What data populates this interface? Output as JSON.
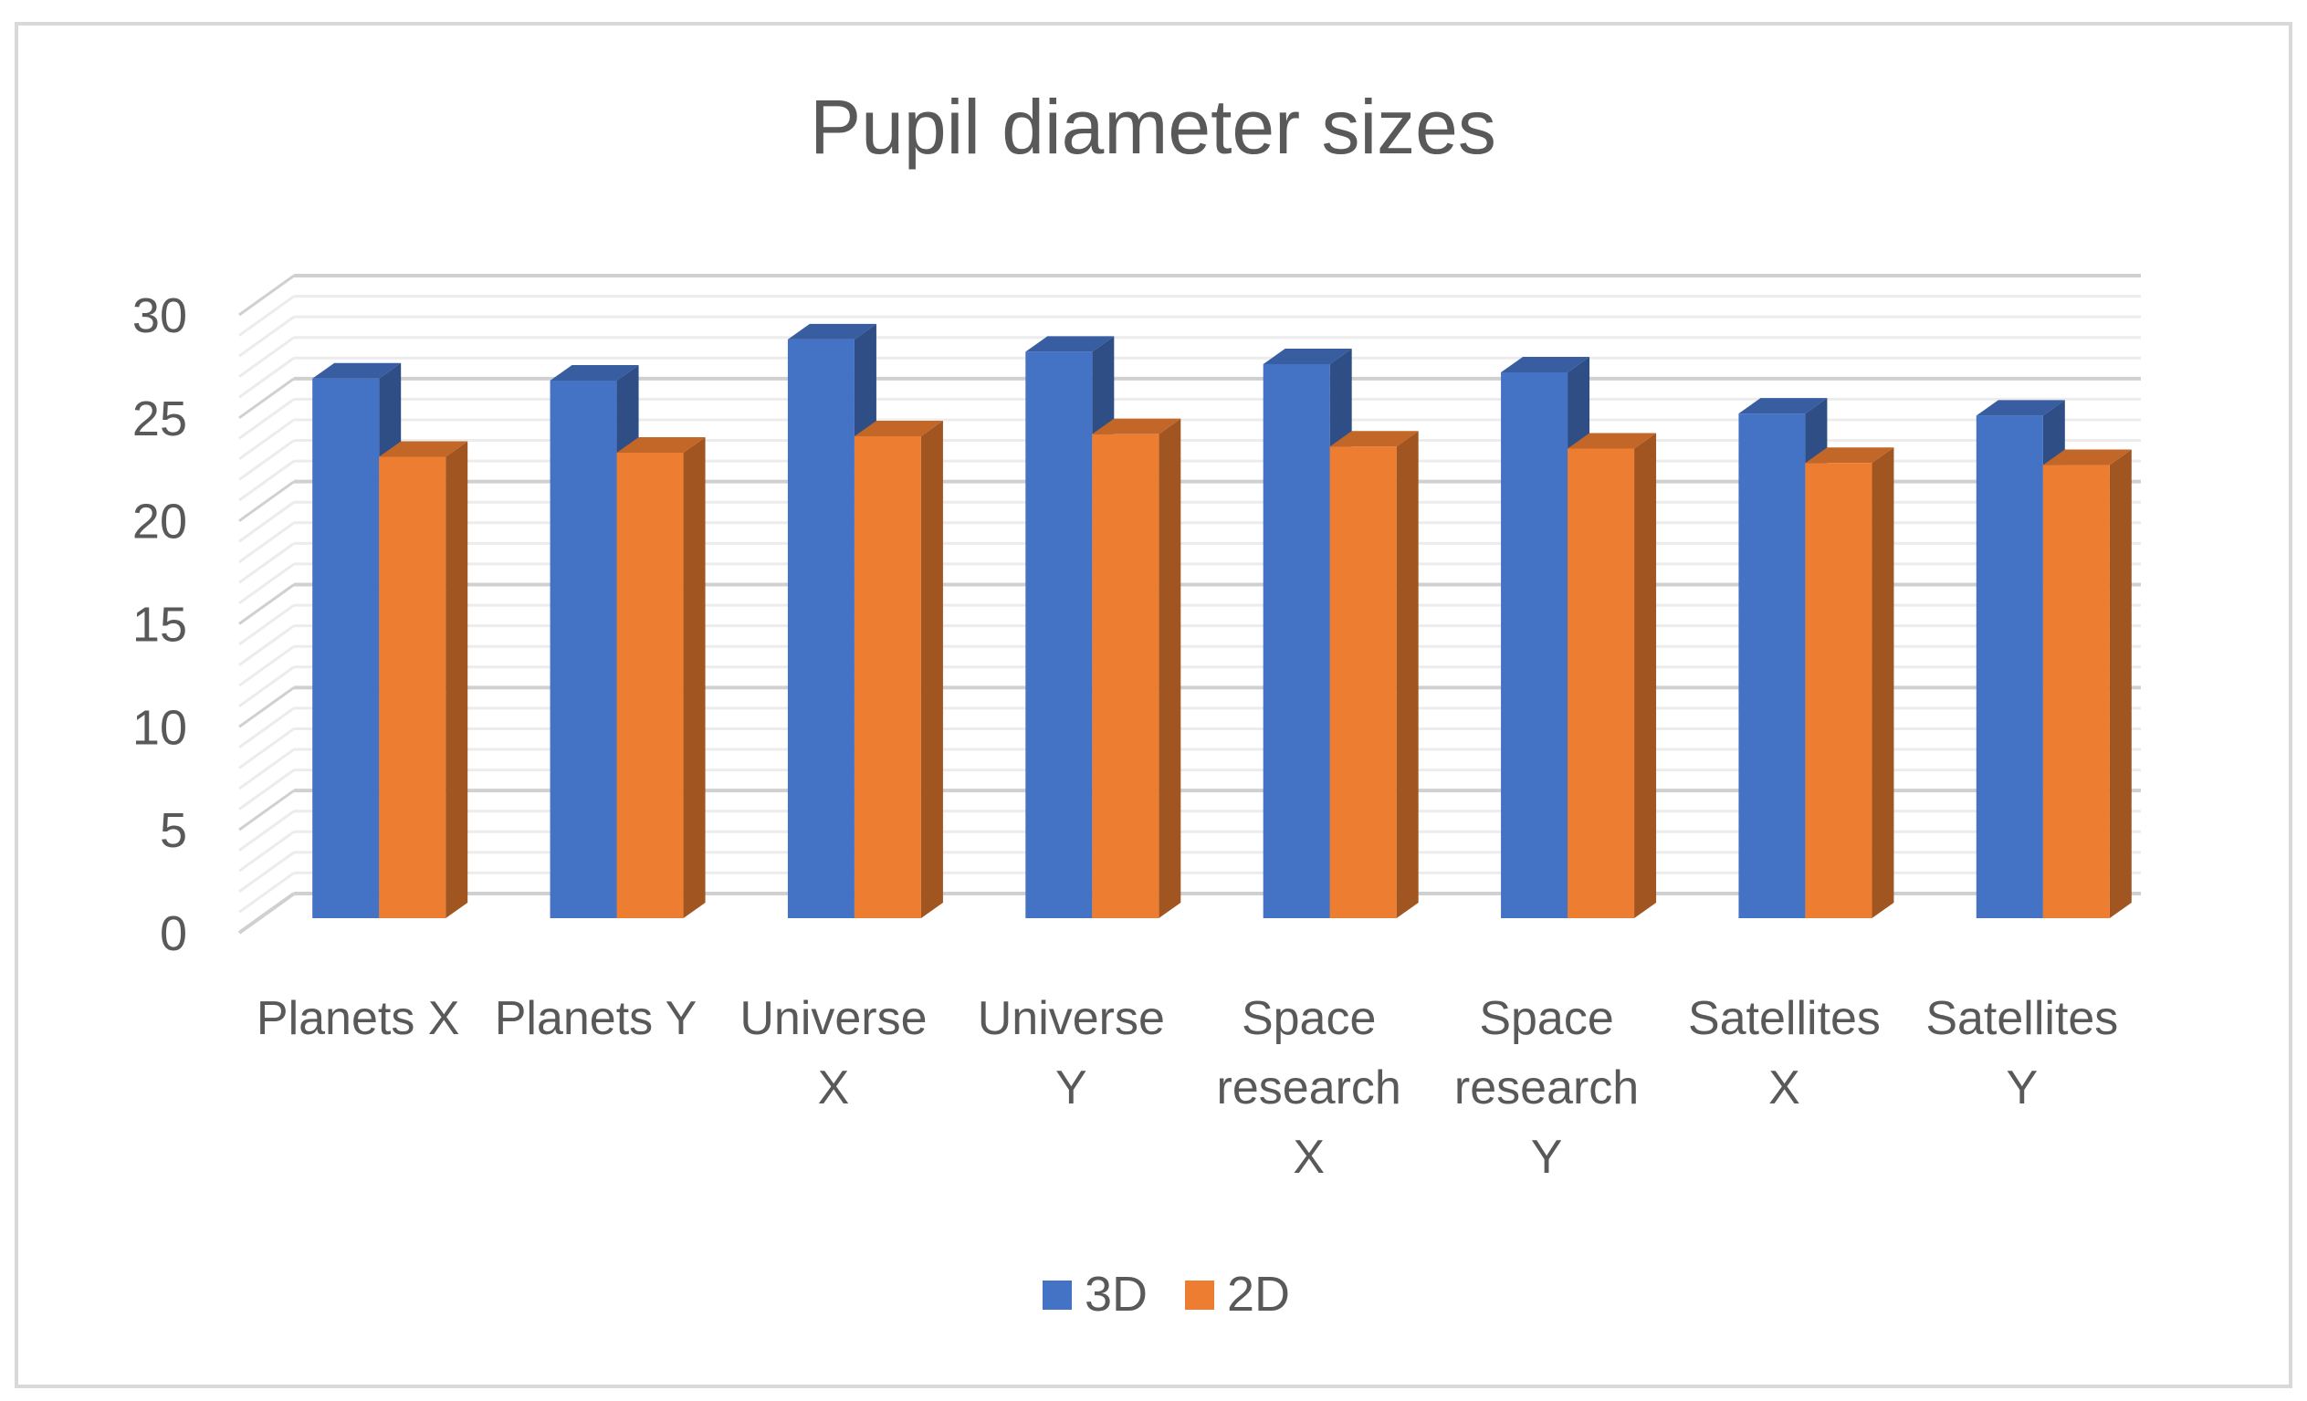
{
  "chart_data": {
    "type": "bar",
    "title": "Pupil diameter sizes",
    "categories": [
      [
        "Planets X"
      ],
      [
        "Planets Y"
      ],
      [
        "Universe",
        "X"
      ],
      [
        "Universe",
        "Y"
      ],
      [
        "Space",
        "research",
        "X"
      ],
      [
        "Space",
        "research",
        "Y"
      ],
      [
        "Satellites",
        "X"
      ],
      [
        "Satellites",
        "Y"
      ]
    ],
    "series": [
      {
        "name": "3D",
        "color": "#4472C4",
        "values": [
          26.2,
          26.1,
          28.1,
          27.5,
          26.9,
          26.5,
          24.5,
          24.4
        ]
      },
      {
        "name": "2D",
        "color": "#ED7D31",
        "values": [
          22.4,
          22.6,
          23.4,
          23.5,
          22.9,
          22.8,
          22.1,
          22.0
        ]
      }
    ],
    "ylim": [
      0,
      30
    ],
    "yticks": [
      "0",
      "5",
      "10",
      "15",
      "20",
      "25",
      "30"
    ],
    "grid": true,
    "legend": "bottom",
    "style": "3d-clustered-column"
  }
}
